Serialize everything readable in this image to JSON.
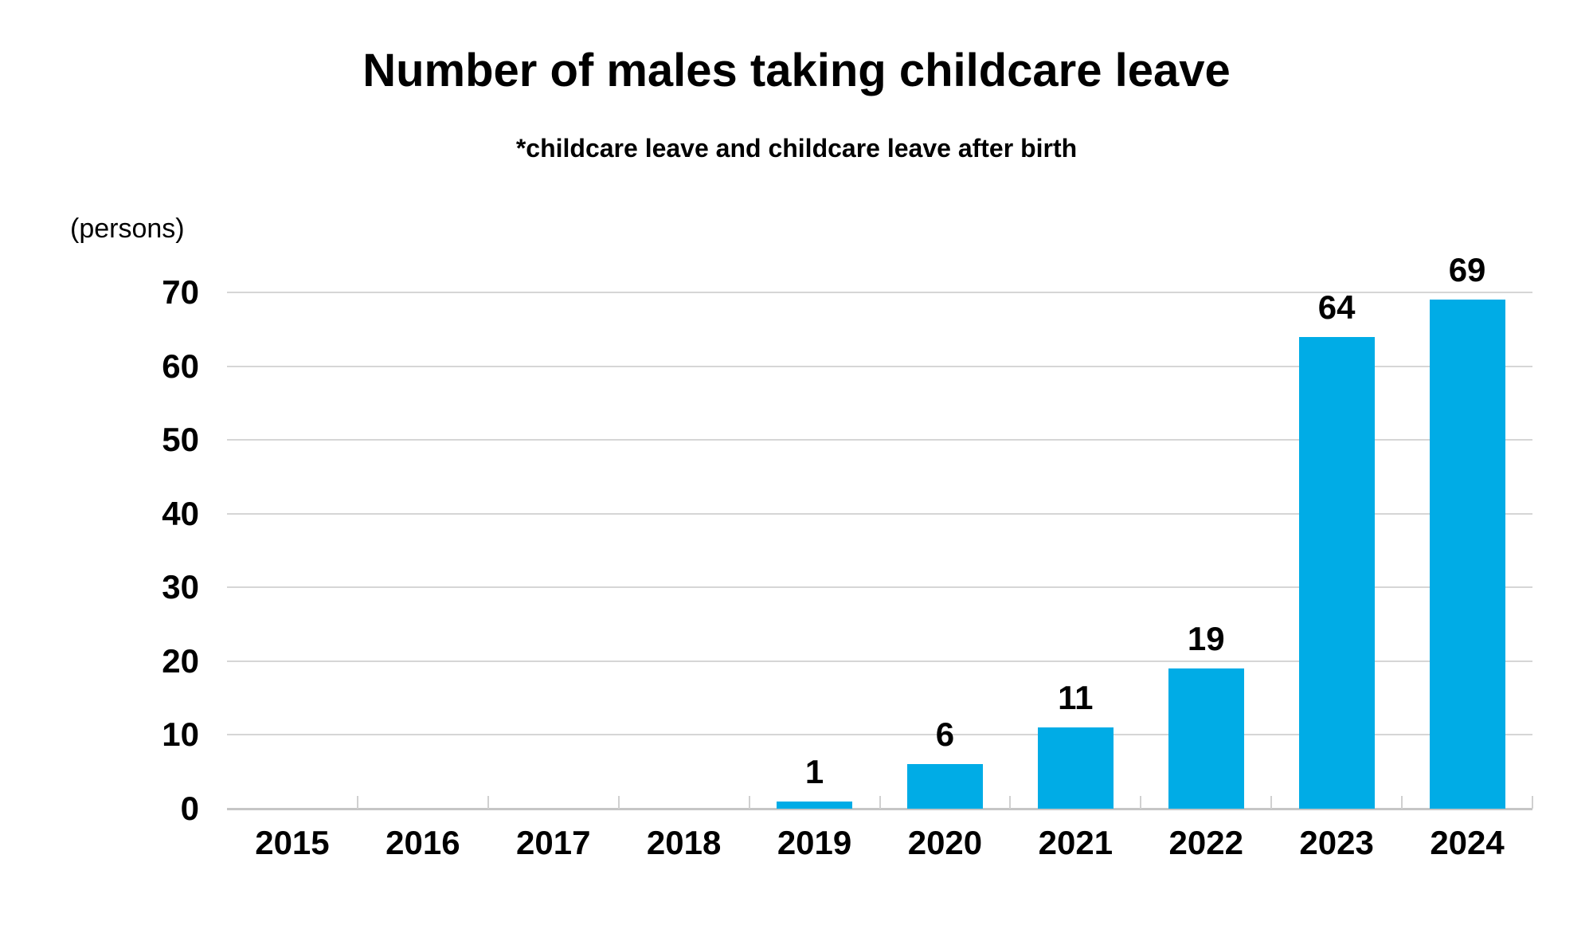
{
  "title": "Number of males taking childcare leave",
  "subtitle": "*childcare leave and childcare leave after birth",
  "y_axis_unit": "(persons)",
  "colors": {
    "bar": "#00ACE6",
    "gridline": "#D6D6D6",
    "axis_line": "#C6C6C6",
    "text": "#000000",
    "background": "#FFFFFF"
  },
  "chart_data": {
    "type": "bar",
    "title": "Number of males taking childcare leave",
    "subtitle": "*childcare leave and childcare leave after birth",
    "categories": [
      "2015",
      "2016",
      "2017",
      "2018",
      "2019",
      "2020",
      "2021",
      "2022",
      "2023",
      "2024"
    ],
    "values": [
      0,
      0,
      0,
      0,
      1,
      6,
      11,
      19,
      64,
      69
    ],
    "data_labels": [
      "",
      "",
      "",
      "",
      "1",
      "6",
      "11",
      "19",
      "64",
      "69"
    ],
    "xlabel": "",
    "ylabel": "(persons)",
    "ylim": [
      0,
      70
    ],
    "yticks": [
      0,
      10,
      20,
      30,
      40,
      50,
      60,
      70
    ],
    "grid": true,
    "legend_position": "none",
    "bar_color": "#00ACE6"
  }
}
